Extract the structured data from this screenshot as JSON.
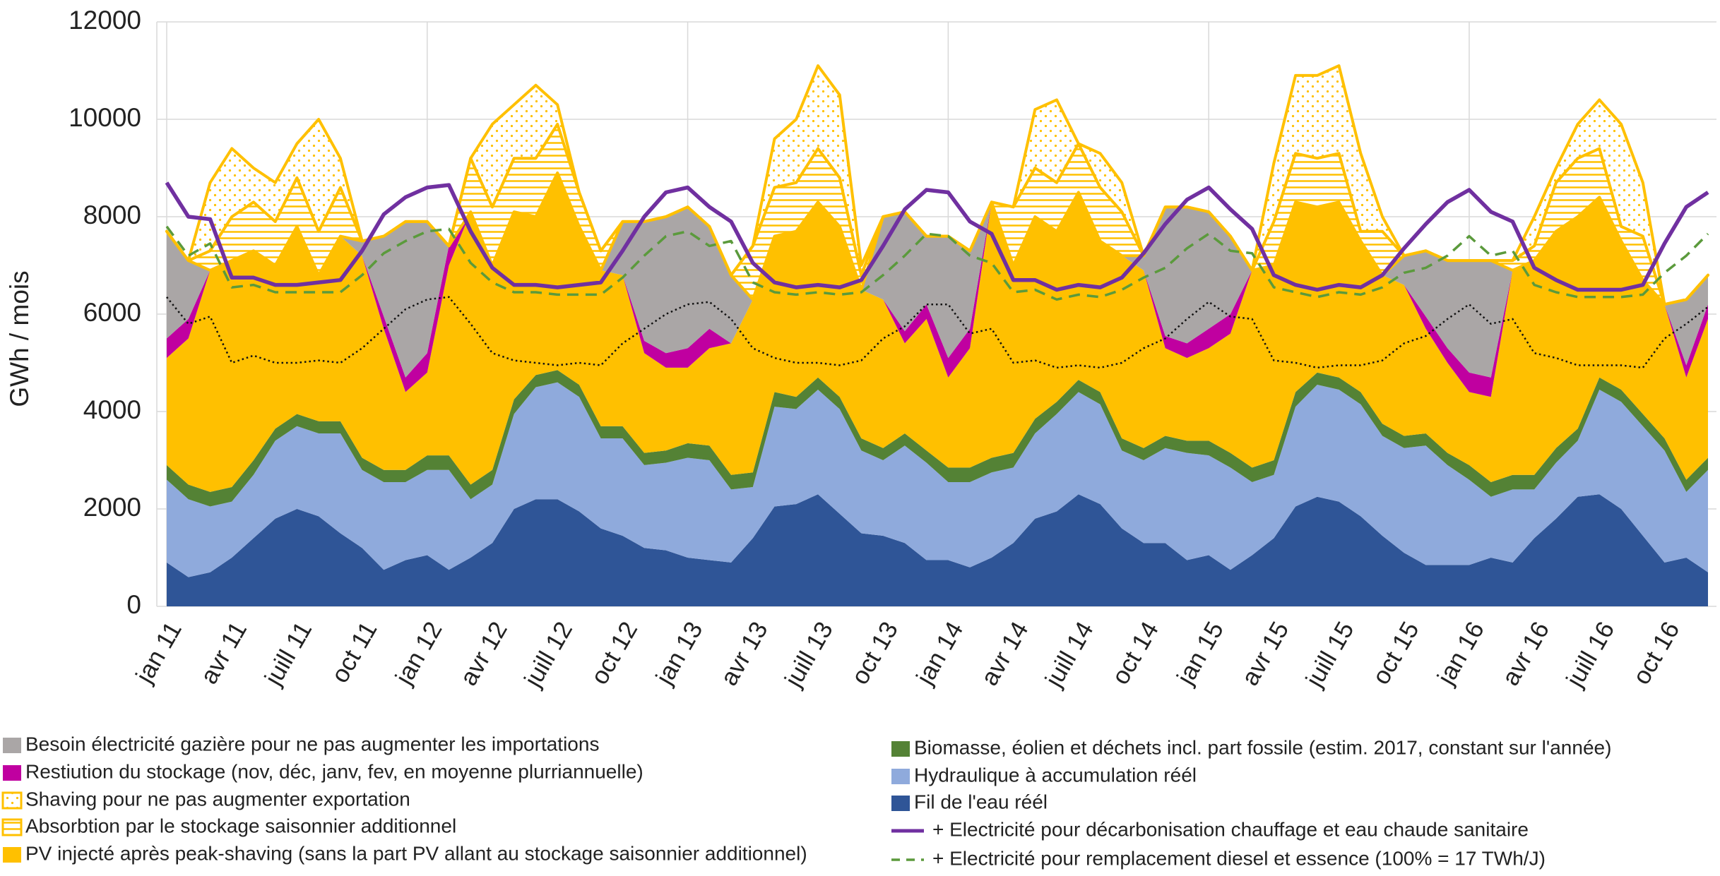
{
  "chart_data": {
    "type": "stacked-area",
    "y_label": "GWh / mois",
    "ylim": [
      0,
      12000
    ],
    "yticks": [
      0,
      2000,
      4000,
      6000,
      8000,
      10000,
      12000
    ],
    "grid": true,
    "categories": [
      "jan 11",
      null,
      null,
      "avr 11",
      null,
      null,
      "juill 11",
      null,
      null,
      "oct 11",
      null,
      null,
      "jan 12",
      null,
      null,
      "avr 12",
      null,
      null,
      "juill 12",
      null,
      null,
      "oct 12",
      null,
      null,
      "jan 13",
      null,
      null,
      "avr 13",
      null,
      null,
      "juill 13",
      null,
      null,
      "oct 13",
      null,
      null,
      "jan 14",
      null,
      null,
      "avr 14",
      null,
      null,
      "juill 14",
      null,
      null,
      "oct 14",
      null,
      null,
      "jan 15",
      null,
      null,
      "avr 15",
      null,
      null,
      "juill 15",
      null,
      null,
      "oct 15",
      null,
      null,
      "jan 16",
      null,
      null,
      "avr 16",
      null,
      null,
      "juill 16",
      null,
      null,
      "oct 16",
      null,
      null
    ],
    "series": [
      {
        "name": "Fil de l'eau réél",
        "kind": "area",
        "color": "#2f5597",
        "values": [
          900,
          600,
          700,
          1000,
          1400,
          1800,
          2000,
          1850,
          1500,
          1200,
          750,
          950,
          1050,
          750,
          1000,
          1300,
          2000,
          2200,
          2200,
          1950,
          1600,
          1450,
          1200,
          1150,
          1000,
          950,
          900,
          1400,
          2050,
          2100,
          2300,
          1900,
          1500,
          1450,
          1300,
          950,
          950,
          800,
          1000,
          1300,
          1800,
          1950,
          2300,
          2100,
          1600,
          1300,
          1300,
          950,
          1050,
          750,
          1050,
          1400,
          2050,
          2250,
          2150,
          1850,
          1450,
          1100,
          850,
          850,
          850,
          1000,
          900,
          1400,
          1800,
          2250,
          2300,
          2000,
          1450,
          900,
          1000,
          700
        ]
      },
      {
        "name": "Hydraulique à accumulation réél",
        "kind": "area",
        "color": "#8faadc",
        "values": [
          1700,
          1600,
          1350,
          1150,
          1300,
          1600,
          1700,
          1700,
          2050,
          1600,
          1800,
          1600,
          1750,
          2050,
          1200,
          1200,
          1950,
          2300,
          2400,
          2350,
          1850,
          2000,
          1700,
          1800,
          2050,
          2050,
          1500,
          1050,
          2050,
          1950,
          2150,
          2150,
          1700,
          1550,
          2000,
          2000,
          1600,
          1750,
          1750,
          1550,
          1750,
          2000,
          2100,
          2050,
          1600,
          1700,
          1950,
          2200,
          2050,
          2100,
          1500,
          1300,
          2050,
          2300,
          2300,
          2300,
          2050,
          2150,
          2450,
          2050,
          1750,
          1250,
          1500,
          1000,
          1150,
          1150,
          2150,
          2200,
          2250,
          2300,
          1350,
          2100
        ]
      },
      {
        "name": "Biomasse, éolien et déchets incl. part fossile (estim. 2017, constant sur l'année)",
        "kind": "area",
        "color": "#548235",
        "values": [
          300,
          300,
          300,
          300,
          300,
          250,
          250,
          250,
          250,
          250,
          250,
          250,
          300,
          300,
          300,
          300,
          300,
          250,
          250,
          250,
          250,
          250,
          250,
          250,
          300,
          300,
          300,
          300,
          300,
          250,
          250,
          250,
          250,
          250,
          250,
          250,
          300,
          300,
          300,
          300,
          300,
          250,
          250,
          250,
          250,
          250,
          250,
          250,
          300,
          300,
          300,
          300,
          300,
          250,
          250,
          250,
          250,
          250,
          250,
          250,
          300,
          300,
          300,
          300,
          300,
          250,
          250,
          250,
          250,
          250,
          250,
          250
        ]
      },
      {
        "name": "PV injecté après peak-shaving (sans la part PV allant au stockage saisonnier additionnel)",
        "kind": "area",
        "color": "#ffc000",
        "values": [
          2200,
          3000,
          4550,
          4650,
          4300,
          3350,
          3850,
          3000,
          3800,
          4150,
          2900,
          1600,
          1700,
          3900,
          5600,
          4200,
          3850,
          3250,
          4050,
          3250,
          3200,
          3100,
          2050,
          1700,
          1550,
          2000,
          2700,
          3550,
          3200,
          3400,
          3600,
          3500,
          3050,
          3050,
          1850,
          2700,
          1850,
          2450,
          5250,
          3850,
          4150,
          3500,
          3850,
          3100,
          3750,
          3650,
          1800,
          1700,
          1900,
          2450,
          4050,
          4000,
          3900,
          3400,
          3600,
          3100,
          3050,
          3100,
          2150,
          1850,
          1500,
          1750,
          4200,
          4400,
          4450,
          4350,
          3700,
          3050,
          2750,
          2750,
          2100,
          2850
        ]
      },
      {
        "name": "Restiution du stockage (nov, déc, janv, fev, en moyenne plurriannuelle)",
        "kind": "area",
        "color": "#c000a0",
        "values": [
          400,
          400,
          0,
          0,
          0,
          0,
          0,
          0,
          0,
          0,
          250,
          300,
          400,
          400,
          0,
          0,
          0,
          0,
          0,
          0,
          0,
          0,
          250,
          300,
          400,
          400,
          0,
          0,
          0,
          0,
          0,
          0,
          0,
          0,
          250,
          300,
          400,
          400,
          0,
          0,
          0,
          0,
          0,
          0,
          0,
          0,
          250,
          300,
          400,
          400,
          0,
          0,
          0,
          0,
          0,
          0,
          0,
          0,
          250,
          300,
          400,
          400,
          0,
          0,
          0,
          0,
          0,
          0,
          0,
          0,
          250,
          300
        ]
      },
      {
        "name": "Besoin électricité gazière pour ne pas augmenter les importations",
        "kind": "area",
        "color": "#aaa6a6",
        "values": [
          2200,
          1200,
          0,
          0,
          0,
          0,
          0,
          0,
          0,
          300,
          1650,
          3200,
          2700,
          0,
          0,
          0,
          0,
          0,
          0,
          0,
          0,
          1100,
          2450,
          2800,
          2900,
          2100,
          1400,
          0,
          0,
          0,
          0,
          0,
          0,
          1700,
          2450,
          1400,
          2500,
          1600,
          0,
          0,
          0,
          0,
          0,
          0,
          0,
          300,
          2650,
          2800,
          2400,
          1600,
          0,
          0,
          0,
          0,
          0,
          0,
          0,
          600,
          1350,
          1800,
          2300,
          2400,
          0,
          0,
          0,
          0,
          0,
          0,
          0,
          0,
          1350,
          600
        ]
      },
      {
        "name": "Absorbtion par le stockage saisonnier additionnel",
        "kind": "area",
        "color": "#ffc000",
        "pattern": "hatch",
        "values": [
          0,
          0,
          400,
          900,
          1000,
          900,
          1000,
          900,
          1000,
          0,
          0,
          0,
          0,
          0,
          1100,
          1200,
          1100,
          1200,
          1000,
          700,
          400,
          0,
          0,
          0,
          0,
          0,
          0,
          1100,
          1000,
          1000,
          1100,
          1000,
          300,
          0,
          0,
          0,
          0,
          0,
          0,
          1200,
          1000,
          1000,
          1000,
          1100,
          900,
          0,
          0,
          0,
          0,
          0,
          0,
          900,
          1000,
          1000,
          1000,
          200,
          900,
          0,
          0,
          0,
          0,
          0,
          200,
          300,
          1000,
          1200,
          1000,
          300,
          900,
          0,
          0,
          0
        ]
      },
      {
        "name": "Shaving pour ne pas augmenter exportation",
        "kind": "area",
        "color": "#ffc000",
        "pattern": "dots",
        "values": [
          0,
          0,
          1400,
          1400,
          700,
          800,
          700,
          2300,
          600,
          0,
          0,
          0,
          0,
          0,
          0,
          1700,
          1100,
          1500,
          400,
          0,
          0,
          0,
          0,
          0,
          0,
          0,
          0,
          0,
          1000,
          1300,
          1700,
          1700,
          200,
          0,
          0,
          0,
          0,
          0,
          0,
          0,
          1200,
          1700,
          0,
          700,
          600,
          0,
          0,
          0,
          0,
          0,
          0,
          1200,
          1600,
          1700,
          1800,
          1600,
          300,
          0,
          0,
          0,
          0,
          0,
          0,
          600,
          300,
          700,
          1000,
          2100,
          1100,
          0,
          0,
          0
        ]
      },
      {
        "name": "+ Electricité pour décarbonisation chauffage et  eau chaude sanitaire",
        "kind": "line",
        "color": "#7030a0",
        "values": [
          8700,
          8000,
          7950,
          6750,
          6750,
          6600,
          6600,
          6650,
          6700,
          7300,
          8050,
          8400,
          8600,
          8650,
          7700,
          6950,
          6600,
          6600,
          6550,
          6600,
          6650,
          7300,
          8000,
          8500,
          8600,
          8200,
          7900,
          7050,
          6650,
          6550,
          6600,
          6550,
          6700,
          7400,
          8150,
          8550,
          8500,
          7900,
          7650,
          6700,
          6700,
          6500,
          6600,
          6550,
          6750,
          7250,
          7850,
          8350,
          8600,
          8150,
          7750,
          6800,
          6600,
          6500,
          6600,
          6550,
          6800,
          7350,
          7850,
          8300,
          8550,
          8100,
          7900,
          6950,
          6700,
          6500,
          6500,
          6500,
          6600,
          7450,
          8200,
          8500
        ]
      },
      {
        "name": "+ Electricité pour remplacement diesel et essence (100% = 17 TWh/J)",
        "kind": "line",
        "dash": "dashed",
        "color": "#5b9a3c",
        "values": [
          7800,
          7200,
          7450,
          6550,
          6600,
          6450,
          6450,
          6450,
          6450,
          6800,
          7250,
          7500,
          7700,
          7750,
          7050,
          6650,
          6450,
          6450,
          6400,
          6400,
          6400,
          6750,
          7200,
          7600,
          7700,
          7400,
          7500,
          6650,
          6450,
          6400,
          6450,
          6400,
          6450,
          6800,
          7200,
          7650,
          7600,
          7200,
          7050,
          6450,
          6500,
          6300,
          6400,
          6350,
          6500,
          6750,
          6950,
          7350,
          7650,
          7300,
          7250,
          6550,
          6450,
          6350,
          6450,
          6400,
          6550,
          6850,
          6950,
          7200,
          7600,
          7200,
          7300,
          6600,
          6450,
          6350,
          6350,
          6350,
          6400,
          6850,
          7200,
          7650
        ]
      },
      {
        "kind": "line",
        "dash": "dotted",
        "color": "#111111",
        "values": [
          6350,
          5800,
          5950,
          5000,
          5150,
          5000,
          5000,
          5050,
          5000,
          5300,
          5700,
          6100,
          6300,
          6350,
          5800,
          5200,
          5050,
          5000,
          4950,
          5000,
          4950,
          5400,
          5700,
          6000,
          6200,
          6250,
          5900,
          5300,
          5100,
          5000,
          5000,
          4950,
          5050,
          5500,
          5750,
          6200,
          6200,
          5600,
          5700,
          5000,
          5050,
          4900,
          4950,
          4900,
          5000,
          5300,
          5500,
          5900,
          6250,
          5950,
          5900,
          5050,
          5000,
          4900,
          4950,
          4950,
          5050,
          5400,
          5550,
          5900,
          6200,
          5800,
          5900,
          5200,
          5100,
          4950,
          4950,
          4950,
          4900,
          5500,
          5800,
          6150
        ]
      }
    ]
  }
}
